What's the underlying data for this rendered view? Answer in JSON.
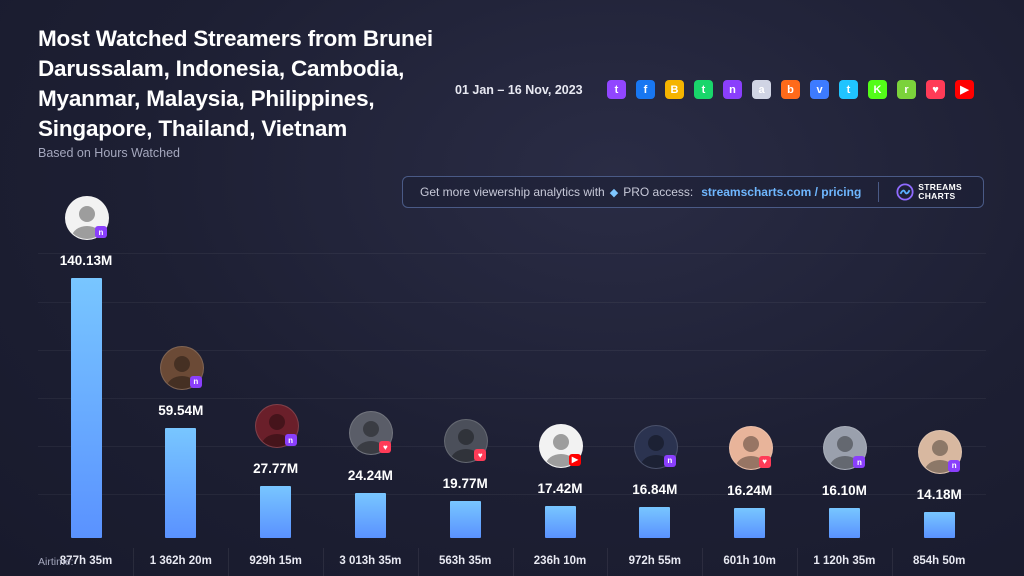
{
  "header": {
    "title": "Most Watched Streamers from Brunei Darussalam, Indonesia, Cambodia, Myanmar, Malaysia, Philippines, Singapore, Thailand, Vietnam",
    "subtitle": "Based on Hours Watched",
    "date_range": "01 Jan – 16 Nov, 2023"
  },
  "platforms": [
    {
      "name": "twitch-icon",
      "color": "#9146ff",
      "glyph": "t"
    },
    {
      "name": "facebook-icon",
      "color": "#1877f2",
      "glyph": "f"
    },
    {
      "name": "booyah-icon",
      "color": "#f5b400",
      "glyph": "B"
    },
    {
      "name": "trovo-icon",
      "color": "#19d66b",
      "glyph": "t"
    },
    {
      "name": "nimo-icon",
      "color": "#8a3ffc",
      "glyph": "n"
    },
    {
      "name": "afreecatv-icon",
      "color": "#d0d4e4",
      "glyph": "a"
    },
    {
      "name": "bigo-icon",
      "color": "#ff6a1a",
      "glyph": "b"
    },
    {
      "name": "vk-icon",
      "color": "#3d7bff",
      "glyph": "v"
    },
    {
      "name": "tiktok-icon",
      "color": "#20c4ff",
      "glyph": "t"
    },
    {
      "name": "kick-icon",
      "color": "#53fc18",
      "glyph": "K"
    },
    {
      "name": "rumble-icon",
      "color": "#7bd23b",
      "glyph": "r"
    },
    {
      "name": "heart-icon",
      "color": "#ff3b57",
      "glyph": "♥"
    },
    {
      "name": "youtube-icon",
      "color": "#ff0000",
      "glyph": "▶"
    }
  ],
  "banner": {
    "text": "Get more viewership analytics with",
    "pro_text": "PRO access:",
    "link": "streamscharts.com / pricing",
    "logo_line1": "STREAMS",
    "logo_line2": "CHARTS"
  },
  "airtime_label": "Airtime:",
  "colors": {
    "bar_top": "#78c6ff",
    "bar_bottom": "#5a92ff",
    "background": "#1d1f33"
  },
  "chart_data": {
    "type": "bar",
    "title": "Most Watched Streamers from Brunei Darussalam, Indonesia, Cambodia, Myanmar, Malaysia, Philippines, Singapore, Thailand, Vietnam",
    "subtitle": "Based on Hours Watched",
    "ylabel": "",
    "unit": "M hours watched",
    "ylim": [
      0,
      160
    ],
    "grid": true,
    "values": [
      140.13,
      59.54,
      27.77,
      24.24,
      19.77,
      17.42,
      16.84,
      16.24,
      16.1,
      14.18
    ],
    "value_labels": [
      "140.13M",
      "59.54M",
      "27.77M",
      "24.24M",
      "19.77M",
      "17.42M",
      "16.84M",
      "16.24M",
      "16.10M",
      "14.18M"
    ],
    "airtime": [
      "877h 35m",
      "1 362h 20m",
      "929h 15m",
      "3 013h 35m",
      "563h 35m",
      "236h 10m",
      "972h 55m",
      "601h 10m",
      "1 120h 35m",
      "854h 50m"
    ],
    "platform_badges": [
      "nimo",
      "nimo",
      "nimo",
      "heart",
      "heart",
      "youtube",
      "nimo",
      "heart",
      "nimo",
      "nimo"
    ]
  }
}
